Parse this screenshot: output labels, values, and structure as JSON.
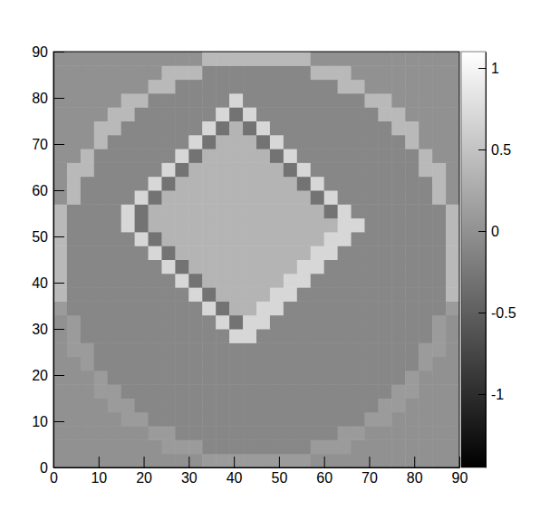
{
  "chart_data": {
    "type": "heatmap",
    "xbins": [
      0,
      3,
      6,
      9,
      12,
      15,
      18,
      21,
      24,
      27,
      30,
      33,
      36,
      39,
      42,
      45,
      48,
      51,
      54,
      57,
      60,
      63,
      66,
      69,
      72,
      75,
      78,
      81,
      84,
      87,
      90
    ],
    "ybins": [
      0,
      3,
      6,
      9,
      12,
      15,
      18,
      21,
      24,
      27,
      30,
      33,
      36,
      39,
      42,
      45,
      48,
      51,
      54,
      57,
      60,
      63,
      66,
      69,
      72,
      75,
      78,
      81,
      84,
      87,
      90
    ],
    "xlim": [
      0,
      90
    ],
    "xticks": [
      0,
      10,
      20,
      30,
      40,
      50,
      60,
      70,
      80,
      90
    ],
    "ylim": [
      0,
      90
    ],
    "yticks": [
      0,
      10,
      20,
      30,
      40,
      50,
      60,
      70,
      80,
      90
    ],
    "colorbar": {
      "range": [
        -1.45,
        1.1
      ],
      "ticks": [
        -1,
        -0.5,
        0,
        0.5,
        1
      ],
      "colors": [
        "#000000",
        "#ffffff"
      ]
    },
    "z": [
      [
        0,
        0,
        0,
        0,
        0,
        0,
        0,
        0,
        0,
        0,
        0,
        0.1,
        0.1,
        0.1,
        0.1,
        0.1,
        0.1,
        0.1,
        0.1,
        0,
        0,
        0,
        0,
        0,
        0,
        0,
        0,
        0,
        0,
        0
      ],
      [
        0,
        0,
        0,
        0,
        0,
        0,
        0,
        0,
        0.1,
        0.1,
        0.1,
        -0.1,
        -0.1,
        -0.1,
        -0.1,
        -0.1,
        -0.1,
        -0.1,
        -0.1,
        0.1,
        0.1,
        0.1,
        0,
        0,
        0,
        0,
        0,
        0,
        0,
        0
      ],
      [
        0,
        0,
        0,
        0,
        0,
        0,
        0,
        0.1,
        0.1,
        -0.1,
        -0.1,
        -0.1,
        -0.1,
        -0.1,
        -0.1,
        -0.1,
        -0.1,
        -0.1,
        -0.1,
        -0.1,
        -0.1,
        0.1,
        0.1,
        0,
        0,
        0,
        0,
        0,
        0,
        0
      ],
      [
        0,
        0,
        0,
        0,
        0,
        0.1,
        0.1,
        -0.1,
        -0.1,
        -0.1,
        -0.1,
        -0.1,
        -0.1,
        -0.1,
        -0.1,
        -0.1,
        -0.1,
        -0.1,
        -0.1,
        -0.1,
        -0.1,
        -0.1,
        -0.1,
        0.1,
        0.1,
        0,
        0,
        0,
        0,
        0
      ],
      [
        0,
        0,
        0,
        0,
        0.1,
        0.1,
        -0.1,
        -0.1,
        -0.1,
        -0.1,
        -0.1,
        -0.1,
        -0.1,
        -0.1,
        -0.1,
        -0.1,
        -0.1,
        -0.1,
        -0.1,
        -0.1,
        -0.1,
        -0.1,
        -0.1,
        -0.1,
        0.1,
        0.1,
        0,
        0,
        0,
        0
      ],
      [
        0,
        0,
        0,
        0.1,
        0.1,
        -0.1,
        -0.1,
        -0.1,
        -0.1,
        -0.1,
        -0.1,
        -0.1,
        -0.1,
        -0.1,
        -0.1,
        -0.1,
        -0.1,
        -0.1,
        -0.1,
        -0.1,
        -0.1,
        -0.1,
        -0.1,
        -0.1,
        -0.1,
        0.1,
        0.1,
        0,
        0,
        0
      ],
      [
        0,
        0,
        0,
        0.1,
        -0.1,
        -0.1,
        -0.1,
        -0.1,
        -0.1,
        -0.1,
        -0.1,
        -0.1,
        -0.1,
        -0.1,
        -0.1,
        -0.1,
        -0.1,
        -0.1,
        -0.1,
        -0.1,
        -0.1,
        -0.1,
        -0.1,
        -0.1,
        -0.1,
        -0.1,
        0.1,
        0,
        0,
        0
      ],
      [
        0,
        0,
        0.1,
        -0.1,
        -0.1,
        -0.1,
        -0.1,
        -0.1,
        -0.1,
        -0.1,
        -0.1,
        -0.1,
        -0.1,
        -0.1,
        -0.1,
        -0.1,
        -0.1,
        -0.1,
        -0.1,
        -0.1,
        -0.1,
        -0.1,
        -0.1,
        -0.1,
        -0.1,
        -0.1,
        -0.1,
        0.1,
        0,
        0
      ],
      [
        0,
        0.1,
        0.1,
        -0.1,
        -0.1,
        -0.1,
        -0.1,
        -0.1,
        -0.1,
        -0.1,
        -0.1,
        -0.1,
        -0.1,
        -0.1,
        -0.1,
        -0.1,
        -0.1,
        -0.1,
        -0.1,
        -0.1,
        -0.1,
        -0.1,
        -0.1,
        -0.1,
        -0.1,
        -0.1,
        -0.1,
        0.1,
        0.1,
        0
      ],
      [
        0,
        0.1,
        -0.1,
        -0.1,
        -0.1,
        -0.1,
        -0.1,
        -0.1,
        -0.1,
        -0.1,
        -0.1,
        -0.1,
        -0.1,
        0.7,
        0.7,
        -0.1,
        -0.1,
        -0.1,
        -0.1,
        -0.1,
        -0.1,
        -0.1,
        -0.1,
        -0.1,
        -0.1,
        -0.1,
        -0.1,
        -0.1,
        0.1,
        0
      ],
      [
        0,
        0.1,
        -0.1,
        -0.1,
        -0.1,
        -0.1,
        -0.1,
        -0.1,
        -0.1,
        -0.1,
        -0.1,
        -0.1,
        0.7,
        -0.3,
        0.7,
        0.7,
        -0.1,
        -0.1,
        -0.1,
        -0.1,
        -0.1,
        -0.1,
        -0.1,
        -0.1,
        -0.1,
        -0.1,
        -0.1,
        -0.1,
        0.1,
        0
      ],
      [
        0.1,
        -0.1,
        -0.1,
        -0.1,
        -0.1,
        -0.1,
        -0.1,
        -0.1,
        -0.1,
        -0.1,
        -0.1,
        0.7,
        -0.3,
        0.35,
        0.35,
        0.7,
        0.7,
        -0.1,
        -0.1,
        -0.1,
        -0.1,
        -0.1,
        -0.1,
        -0.1,
        -0.1,
        -0.1,
        -0.1,
        -0.1,
        -0.1,
        0.1
      ],
      [
        0.4,
        -0.1,
        -0.1,
        -0.1,
        -0.1,
        -0.1,
        -0.1,
        -0.1,
        -0.1,
        -0.1,
        0.7,
        -0.3,
        0.35,
        0.35,
        0.35,
        0.35,
        0.7,
        0.7,
        -0.1,
        -0.1,
        -0.1,
        -0.1,
        -0.1,
        -0.1,
        -0.1,
        -0.1,
        -0.1,
        -0.1,
        -0.1,
        0.4
      ],
      [
        0.4,
        -0.1,
        -0.1,
        -0.1,
        -0.1,
        -0.1,
        -0.1,
        -0.1,
        -0.1,
        0.7,
        -0.3,
        0.35,
        0.35,
        0.35,
        0.35,
        0.35,
        0.35,
        0.7,
        0.7,
        -0.1,
        -0.1,
        -0.1,
        -0.1,
        -0.1,
        -0.1,
        -0.1,
        -0.1,
        -0.1,
        -0.1,
        0.4
      ],
      [
        0.4,
        -0.1,
        -0.1,
        -0.1,
        -0.1,
        -0.1,
        -0.1,
        -0.1,
        0.7,
        -0.3,
        0.35,
        0.35,
        0.35,
        0.35,
        0.35,
        0.35,
        0.35,
        0.35,
        0.7,
        0.7,
        -0.1,
        -0.1,
        -0.1,
        -0.1,
        -0.1,
        -0.1,
        -0.1,
        -0.1,
        -0.1,
        0.4
      ],
      [
        0.4,
        -0.1,
        -0.1,
        -0.1,
        -0.1,
        -0.1,
        -0.1,
        0.7,
        -0.3,
        0.35,
        0.35,
        0.35,
        0.35,
        0.35,
        0.35,
        0.35,
        0.35,
        0.35,
        0.35,
        0.7,
        0.7,
        -0.1,
        -0.1,
        -0.1,
        -0.1,
        -0.1,
        -0.1,
        -0.1,
        -0.1,
        0.4
      ],
      [
        0.4,
        -0.1,
        -0.1,
        -0.1,
        -0.1,
        -0.1,
        0.7,
        -0.3,
        0.35,
        0.35,
        0.35,
        0.35,
        0.35,
        0.35,
        0.35,
        0.35,
        0.35,
        0.35,
        0.35,
        0.35,
        0.7,
        0.7,
        -0.1,
        -0.1,
        -0.1,
        -0.1,
        -0.1,
        -0.1,
        -0.1,
        0.4
      ],
      [
        0.4,
        -0.1,
        -0.1,
        -0.1,
        -0.1,
        0.7,
        -0.3,
        0.35,
        0.35,
        0.35,
        0.35,
        0.35,
        0.35,
        0.35,
        0.35,
        0.35,
        0.35,
        0.35,
        0.35,
        0.35,
        0.35,
        0.7,
        0.7,
        -0.1,
        -0.1,
        -0.1,
        -0.1,
        -0.1,
        -0.1,
        0.4
      ],
      [
        0.4,
        -0.1,
        -0.1,
        -0.1,
        -0.1,
        0.7,
        -0.3,
        0.35,
        0.35,
        0.35,
        0.35,
        0.35,
        0.35,
        0.35,
        0.35,
        0.35,
        0.35,
        0.35,
        0.35,
        0.35,
        -0.3,
        0.7,
        -0.1,
        -0.1,
        -0.1,
        -0.1,
        -0.1,
        -0.1,
        -0.1,
        0.4
      ],
      [
        0,
        0.4,
        -0.1,
        -0.1,
        -0.1,
        -0.1,
        0.7,
        -0.3,
        0.35,
        0.35,
        0.35,
        0.35,
        0.35,
        0.35,
        0.35,
        0.35,
        0.35,
        0.35,
        0.35,
        -0.3,
        0.7,
        -0.1,
        -0.1,
        -0.1,
        -0.1,
        -0.1,
        -0.1,
        -0.1,
        0.4,
        0
      ],
      [
        0,
        0.4,
        -0.1,
        -0.1,
        -0.1,
        -0.1,
        -0.1,
        0.7,
        -0.3,
        0.35,
        0.35,
        0.35,
        0.35,
        0.35,
        0.35,
        0.35,
        0.35,
        0.35,
        -0.3,
        0.7,
        -0.1,
        -0.1,
        -0.1,
        -0.1,
        -0.1,
        -0.1,
        -0.1,
        -0.1,
        0.4,
        0
      ],
      [
        0,
        0.4,
        0.4,
        -0.1,
        -0.1,
        -0.1,
        -0.1,
        -0.1,
        0.7,
        -0.3,
        0.35,
        0.35,
        0.35,
        0.35,
        0.35,
        0.35,
        0.35,
        -0.3,
        0.7,
        -0.1,
        -0.1,
        -0.1,
        -0.1,
        -0.1,
        -0.1,
        -0.1,
        -0.1,
        0.4,
        0.4,
        0
      ],
      [
        0,
        0,
        0.4,
        -0.1,
        -0.1,
        -0.1,
        -0.1,
        -0.1,
        -0.1,
        0.7,
        -0.3,
        0.35,
        0.35,
        0.35,
        0.35,
        0.35,
        -0.3,
        0.7,
        -0.1,
        -0.1,
        -0.1,
        -0.1,
        -0.1,
        -0.1,
        -0.1,
        -0.1,
        -0.1,
        0.4,
        0,
        0
      ],
      [
        0,
        0,
        0,
        0.4,
        -0.1,
        -0.1,
        -0.1,
        -0.1,
        -0.1,
        -0.1,
        0.7,
        -0.3,
        0.35,
        0.35,
        0.35,
        -0.3,
        0.7,
        -0.1,
        -0.1,
        -0.1,
        -0.1,
        -0.1,
        -0.1,
        -0.1,
        -0.1,
        -0.1,
        0.4,
        0,
        0,
        0
      ],
      [
        0,
        0,
        0,
        0.4,
        0.4,
        -0.1,
        -0.1,
        -0.1,
        -0.1,
        -0.1,
        -0.1,
        0.7,
        -0.3,
        0.35,
        -0.3,
        0.7,
        -0.1,
        -0.1,
        -0.1,
        -0.1,
        -0.1,
        -0.1,
        -0.1,
        -0.1,
        -0.1,
        0.4,
        0.4,
        0,
        0,
        0
      ],
      [
        0,
        0,
        0,
        0,
        0.4,
        0.4,
        -0.1,
        -0.1,
        -0.1,
        -0.1,
        -0.1,
        -0.1,
        0.7,
        -0.3,
        0.7,
        -0.1,
        -0.1,
        -0.1,
        -0.1,
        -0.1,
        -0.1,
        -0.1,
        -0.1,
        -0.1,
        0.4,
        0.4,
        0,
        0,
        0,
        0
      ],
      [
        0,
        0,
        0,
        0,
        0,
        0.4,
        0.4,
        -0.1,
        -0.1,
        -0.1,
        -0.1,
        -0.1,
        -0.1,
        0.7,
        -0.1,
        -0.1,
        -0.1,
        -0.1,
        -0.1,
        -0.1,
        -0.1,
        -0.1,
        -0.1,
        0.4,
        0.4,
        0,
        0,
        0,
        0,
        0
      ],
      [
        0,
        0,
        0,
        0,
        0,
        0,
        0,
        0.4,
        0.4,
        -0.1,
        -0.1,
        -0.1,
        -0.1,
        -0.1,
        -0.1,
        -0.1,
        -0.1,
        -0.1,
        -0.1,
        -0.1,
        -0.1,
        0.4,
        0.4,
        0,
        0,
        0,
        0,
        0,
        0,
        0
      ],
      [
        0,
        0,
        0,
        0,
        0,
        0,
        0,
        0,
        0.4,
        0.4,
        0.4,
        -0.1,
        -0.1,
        -0.1,
        -0.1,
        -0.1,
        -0.1,
        -0.1,
        -0.1,
        0.4,
        0.4,
        0.4,
        0,
        0,
        0,
        0,
        0,
        0,
        0,
        0
      ],
      [
        0,
        0,
        0,
        0,
        0,
        0,
        0,
        0,
        0,
        0,
        0,
        0.4,
        0.4,
        0.4,
        0.4,
        0.4,
        0.4,
        0.4,
        0.4,
        0,
        0,
        0,
        0,
        0,
        0,
        0,
        0,
        0,
        0,
        0
      ]
    ]
  }
}
